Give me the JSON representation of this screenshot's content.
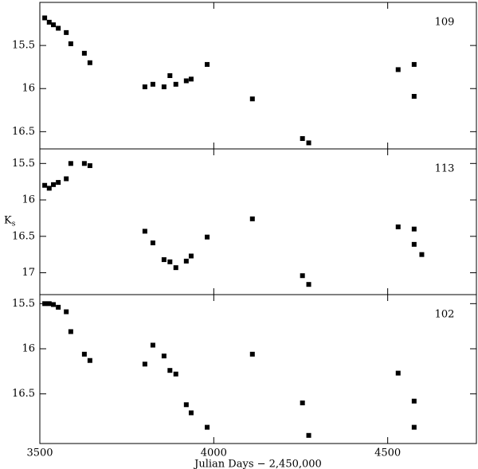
{
  "chart_data": [
    {
      "type": "scatter",
      "label": "109",
      "color": "#000000",
      "x": [
        3514,
        3527,
        3539,
        3553,
        3576,
        3589,
        3628,
        3644,
        3802,
        3825,
        3857,
        3874,
        3891,
        3921,
        3935,
        3981,
        4111,
        4255,
        4273,
        4530,
        4576,
        4576
      ],
      "values": [
        15.18,
        15.23,
        15.26,
        15.3,
        15.35,
        15.48,
        15.59,
        15.7,
        15.98,
        15.95,
        15.98,
        15.85,
        15.95,
        15.91,
        15.89,
        15.72,
        16.12,
        16.58,
        16.63,
        15.78,
        15.72,
        16.09
      ],
      "xlim": [
        3500,
        4755
      ],
      "xticks": [
        3500,
        4000,
        4500
      ],
      "ylim": [
        16.7,
        15.0
      ],
      "yticks": [
        15.5,
        16,
        16.5
      ]
    },
    {
      "type": "scatter",
      "label": "113",
      "color": "#000000",
      "ylabel": "K",
      "ylabel_subscript": "s",
      "x": [
        3514,
        3527,
        3539,
        3553,
        3576,
        3589,
        3628,
        3644,
        3802,
        3825,
        3857,
        3874,
        3891,
        3921,
        3935,
        3981,
        4111,
        4255,
        4273,
        4530,
        4576,
        4576,
        4598
      ],
      "values": [
        15.8,
        15.84,
        15.79,
        15.76,
        15.71,
        15.5,
        15.5,
        15.53,
        16.43,
        16.59,
        16.82,
        16.85,
        16.93,
        16.84,
        16.77,
        16.51,
        16.26,
        17.04,
        17.16,
        16.37,
        16.4,
        16.61,
        16.75
      ],
      "xlim": [
        3500,
        4755
      ],
      "xticks": [
        3500,
        4000,
        4500
      ],
      "ylim": [
        17.3,
        15.3
      ],
      "yticks": [
        15.5,
        16,
        16.5,
        17
      ]
    },
    {
      "type": "scatter",
      "label": "102",
      "color": "#000000",
      "xlabel": "Julian Days − 2,450,000",
      "x": [
        3514,
        3527,
        3539,
        3553,
        3576,
        3589,
        3628,
        3644,
        3802,
        3825,
        3857,
        3874,
        3891,
        3921,
        3935,
        3981,
        4111,
        4255,
        4273,
        4530,
        4576,
        4576
      ],
      "values": [
        15.5,
        15.5,
        15.51,
        15.54,
        15.59,
        15.81,
        16.06,
        16.13,
        16.17,
        15.96,
        16.08,
        16.24,
        16.28,
        16.62,
        16.71,
        16.87,
        16.06,
        16.6,
        16.96,
        16.27,
        16.58,
        16.87
      ],
      "xlim": [
        3500,
        4755
      ],
      "xticks": [
        3500,
        4000,
        4500
      ],
      "xtick_labels": true,
      "ylim": [
        17.05,
        15.4
      ],
      "yticks": [
        15.5,
        16,
        16.5
      ]
    }
  ]
}
